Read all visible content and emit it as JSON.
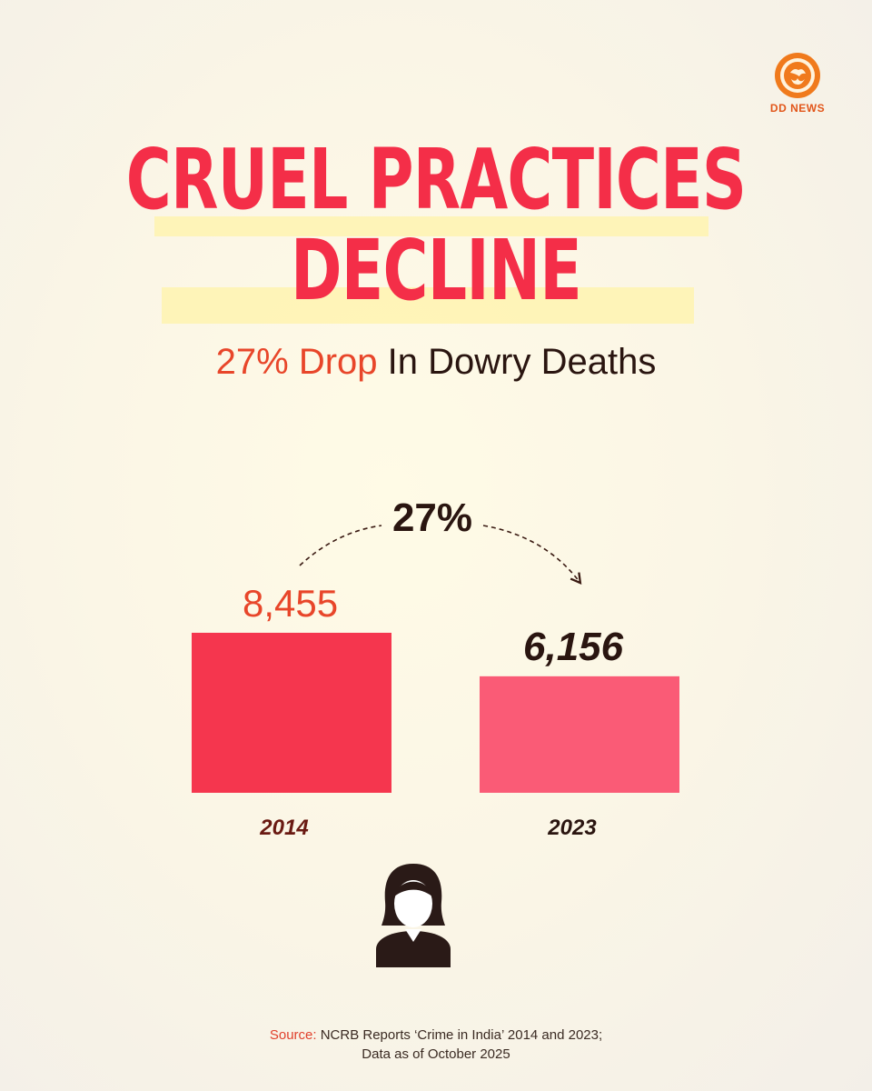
{
  "brand": {
    "logo_text": "DD NEWS",
    "logo_icon": "dd-news-logo-icon",
    "brand_color": "#e2561a"
  },
  "title": {
    "line1": "CRUEL PRACTICES",
    "line2": "DECLINE",
    "color": "#f42e48"
  },
  "subtitle": {
    "accent": "27% Drop",
    "rest": " In Dowry Deaths"
  },
  "change_label": "27%",
  "chart_data": {
    "type": "bar",
    "title": "27% Drop In Dowry Deaths",
    "categories": [
      "2014",
      "2023"
    ],
    "values": [
      8455,
      6156
    ],
    "value_labels": [
      "8,455",
      "6,156"
    ],
    "colors": [
      "#f5364e",
      "#fa5b76"
    ],
    "grid": false,
    "annotation": "27%"
  },
  "icon": {
    "name": "woman-icon"
  },
  "source": {
    "label": "Source:",
    "line1_rest": " NCRB Reports ‘Crime in India’ 2014 and 2023;",
    "line2": "Data as of October 2025"
  }
}
